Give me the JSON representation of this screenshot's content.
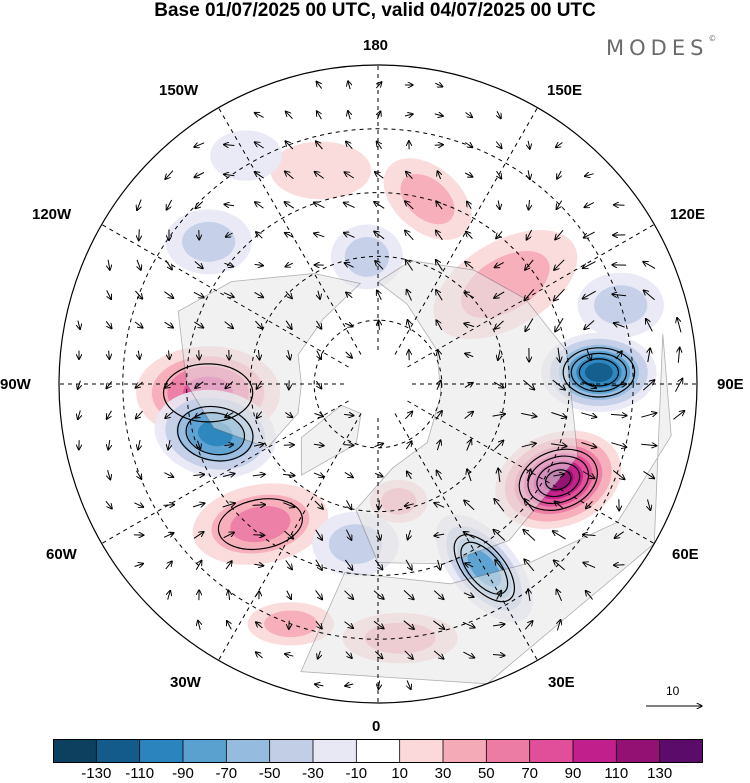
{
  "title": "Base 01/07/2025 00 UTC, valid 04/07/2025 00 UTC",
  "brand": "MODES",
  "brand_mark": "©",
  "longitude_labels": {
    "lon_180": "180",
    "lon_150e": "150E",
    "lon_120e": "120E",
    "lon_90e": "90E",
    "lon_60e": "60E",
    "lon_30e": "30E",
    "lon_0": "0",
    "lon_30w": "30W",
    "lon_60w": "60W",
    "lon_90w": "90W",
    "lon_120w": "120W",
    "lon_150w": "150W"
  },
  "reference_vector_label": "10",
  "colorbar": {
    "colors": [
      "#0d3f5e",
      "#125b8a",
      "#2b84bd",
      "#5aa1d0",
      "#95bcdf",
      "#c2cde6",
      "#e7e8f4",
      "#ffffff",
      "#fbd9da",
      "#f5aab7",
      "#ec7ca4",
      "#e14e9a",
      "#c11f8b",
      "#931173",
      "#5b0c6a"
    ],
    "tick_labels": [
      "-130",
      "-110",
      "-90",
      "-70",
      "-50",
      "-30",
      "-10",
      "10",
      "30",
      "50",
      "70",
      "90",
      "110",
      "130"
    ]
  },
  "anomaly_centers": [
    {
      "lon": -87,
      "lat": 50,
      "value": 75,
      "rx": 20,
      "ry": 13,
      "rot": 0
    },
    {
      "lon": -73,
      "lat": 50,
      "value": -95,
      "rx": 17,
      "ry": 12,
      "rot": 10
    },
    {
      "lon": -40,
      "lat": 47,
      "value": 65,
      "rx": 19,
      "ry": 11,
      "rot": -10
    },
    {
      "lon": -8,
      "lat": 52,
      "value": -40,
      "rx": 12,
      "ry": 9,
      "rot": 0
    },
    {
      "lon": 10,
      "lat": 62,
      "value": 30,
      "rx": 8,
      "ry": 6,
      "rot": 0
    },
    {
      "lon": 30,
      "lat": 40,
      "value": -80,
      "rx": 18,
      "ry": 9,
      "rot": 50
    },
    {
      "lon": 62,
      "lat": 42,
      "value": 125,
      "rx": 18,
      "ry": 13,
      "rot": -20
    },
    {
      "lon": 93,
      "lat": 38,
      "value": -110,
      "rx": 16,
      "ry": 11,
      "rot": 0
    },
    {
      "lon": 128,
      "lat": 52,
      "value": 45,
      "rx": 22,
      "ry": 12,
      "rot": -30
    },
    {
      "lon": 165,
      "lat": 45,
      "value": 35,
      "rx": 14,
      "ry": 9,
      "rot": 40
    },
    {
      "lon": -175,
      "lat": 60,
      "value": -40,
      "rx": 10,
      "ry": 9,
      "rot": 0
    },
    {
      "lon": -165,
      "lat": 38,
      "value": 25,
      "rx": 14,
      "ry": 8,
      "rot": 0
    },
    {
      "lon": -130,
      "lat": 38,
      "value": -40,
      "rx": 12,
      "ry": 9,
      "rot": 0
    },
    {
      "lon": -150,
      "lat": 28,
      "value": -20,
      "rx": 10,
      "ry": 7,
      "rot": 0
    },
    {
      "lon": 5,
      "lat": 30,
      "value": 40,
      "rx": 16,
      "ry": 7,
      "rot": 0
    },
    {
      "lon": -20,
      "lat": 30,
      "value": 30,
      "rx": 12,
      "ry": 6,
      "rot": 0
    },
    {
      "lon": 108,
      "lat": 30,
      "value": -40,
      "rx": 12,
      "ry": 9,
      "rot": 0
    }
  ]
}
